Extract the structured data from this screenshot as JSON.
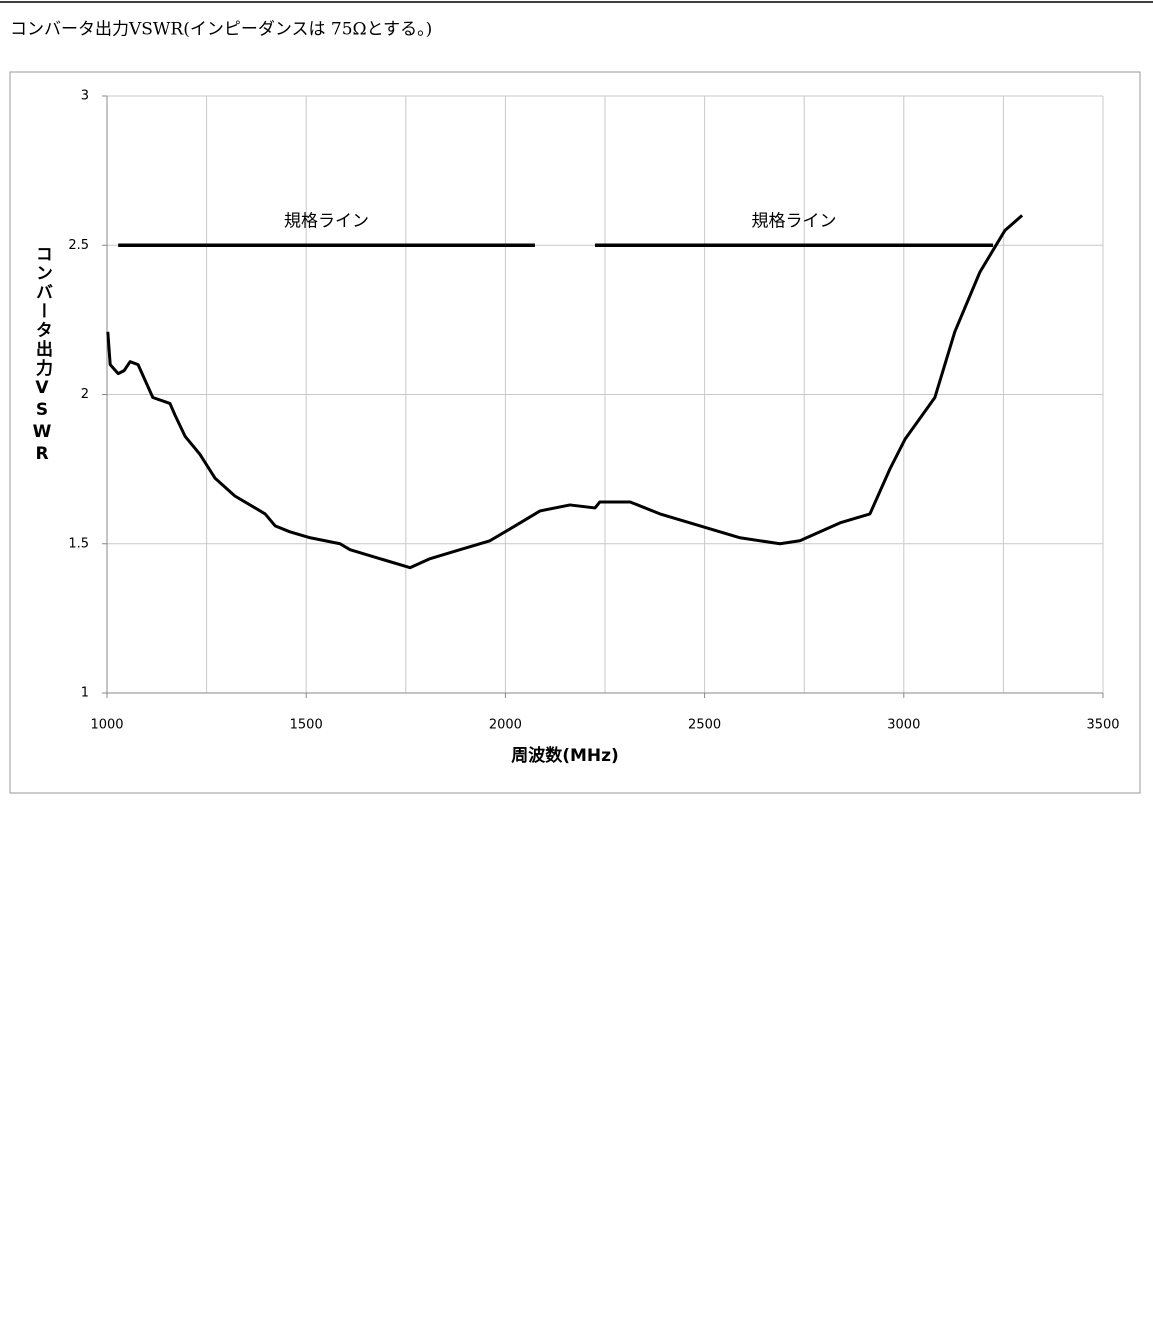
{
  "document_title": "コンバータ出力VSWR(インピーダンスは 75Ωとする。)",
  "chart_data": {
    "type": "line",
    "xlabel": "周波数(MHz)",
    "ylabel": "コンバータ出力VSWR",
    "xlim": [
      1000,
      3500
    ],
    "xticks": [
      1000,
      1500,
      2000,
      2500,
      3000,
      3500
    ],
    "xminor_grid": [
      1250,
      1750,
      2250,
      2750,
      3250
    ],
    "ylim": [
      1,
      3
    ],
    "yticks": [
      1,
      1.5,
      2,
      2.5,
      3
    ],
    "grid": true,
    "series": [
      {
        "color": "#000000",
        "x": [
          1002,
          1008,
          1028,
          1043,
          1058,
          1078,
          1115,
          1158,
          1171,
          1196,
          1233,
          1271,
          1321,
          1397,
          1422,
          1459,
          1510,
          1585,
          1610,
          1685,
          1761,
          1811,
          1886,
          1961,
          2012,
          2087,
          2162,
          2225,
          2237,
          2313,
          2388,
          2488,
          2589,
          2689,
          2739,
          2840,
          2915,
          2965,
          3003,
          3078,
          3128,
          3191,
          3254,
          3297
        ],
        "values": [
          2.21,
          2.1,
          2.07,
          2.08,
          2.11,
          2.1,
          1.99,
          1.97,
          1.93,
          1.86,
          1.8,
          1.72,
          1.66,
          1.6,
          1.56,
          1.54,
          1.52,
          1.5,
          1.48,
          1.45,
          1.42,
          1.45,
          1.48,
          1.51,
          1.55,
          1.61,
          1.63,
          1.62,
          1.64,
          1.64,
          1.6,
          1.56,
          1.52,
          1.5,
          1.51,
          1.57,
          1.6,
          1.75,
          1.85,
          1.99,
          2.21,
          2.41,
          2.55,
          2.6
        ]
      }
    ],
    "spec_lines": [
      {
        "label": "規格ライン",
        "x": [
          1028,
          2074
        ],
        "values": [
          2.5,
          2.5
        ]
      },
      {
        "label": "規格ライン",
        "x": [
          2225,
          3224
        ],
        "values": [
          2.5,
          2.5
        ]
      }
    ]
  }
}
